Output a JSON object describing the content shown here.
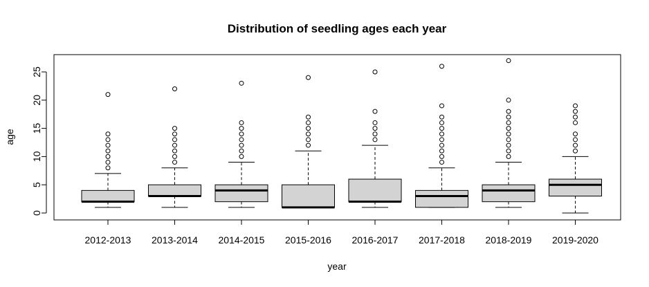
{
  "chart_data": {
    "type": "boxplot",
    "title": "Distribution of seedling ages each year",
    "xlabel": "year",
    "ylabel": "age",
    "ylim": [
      -1,
      28
    ],
    "yticks": [
      0,
      5,
      10,
      15,
      20,
      25
    ],
    "grid": false,
    "legend": "none",
    "colors": {
      "box_fill": "#d3d3d3",
      "stroke": "#000000"
    },
    "categories": [
      "2012-2013",
      "2013-2014",
      "2014-2015",
      "2015-2016",
      "2016-2017",
      "2017-2018",
      "2018-2019",
      "2019-2020"
    ],
    "boxes": [
      {
        "min": 1,
        "q1": 2,
        "median": 2,
        "q3": 4,
        "max": 7,
        "outliers": [
          8,
          9,
          10,
          11,
          12,
          13,
          14,
          21
        ]
      },
      {
        "min": 1,
        "q1": 3,
        "median": 3,
        "q3": 5,
        "max": 8,
        "outliers": [
          9,
          10,
          11,
          12,
          13,
          14,
          15,
          22
        ]
      },
      {
        "min": 1,
        "q1": 2,
        "median": 4,
        "q3": 5,
        "max": 9,
        "outliers": [
          10,
          11,
          12,
          13,
          14,
          15,
          16,
          23
        ]
      },
      {
        "min": 1,
        "q1": 1,
        "median": 1,
        "q3": 5,
        "max": 11,
        "outliers": [
          12,
          13,
          14,
          15,
          16,
          17,
          24
        ]
      },
      {
        "min": 1,
        "q1": 2,
        "median": 2,
        "q3": 6,
        "max": 12,
        "outliers": [
          13,
          14,
          15,
          16,
          18,
          25
        ]
      },
      {
        "min": 1,
        "q1": 1,
        "median": 3,
        "q3": 4,
        "max": 8,
        "outliers": [
          9,
          10,
          11,
          12,
          13,
          14,
          15,
          16,
          17,
          19,
          26
        ]
      },
      {
        "min": 1,
        "q1": 2,
        "median": 4,
        "q3": 5,
        "max": 9,
        "outliers": [
          10,
          11,
          12,
          13,
          14,
          15,
          16,
          17,
          18,
          20,
          27
        ]
      },
      {
        "min": 0,
        "q1": 3,
        "median": 5,
        "q3": 6,
        "max": 10,
        "outliers": [
          11,
          12,
          13,
          14,
          16,
          17,
          18,
          19
        ]
      }
    ]
  }
}
